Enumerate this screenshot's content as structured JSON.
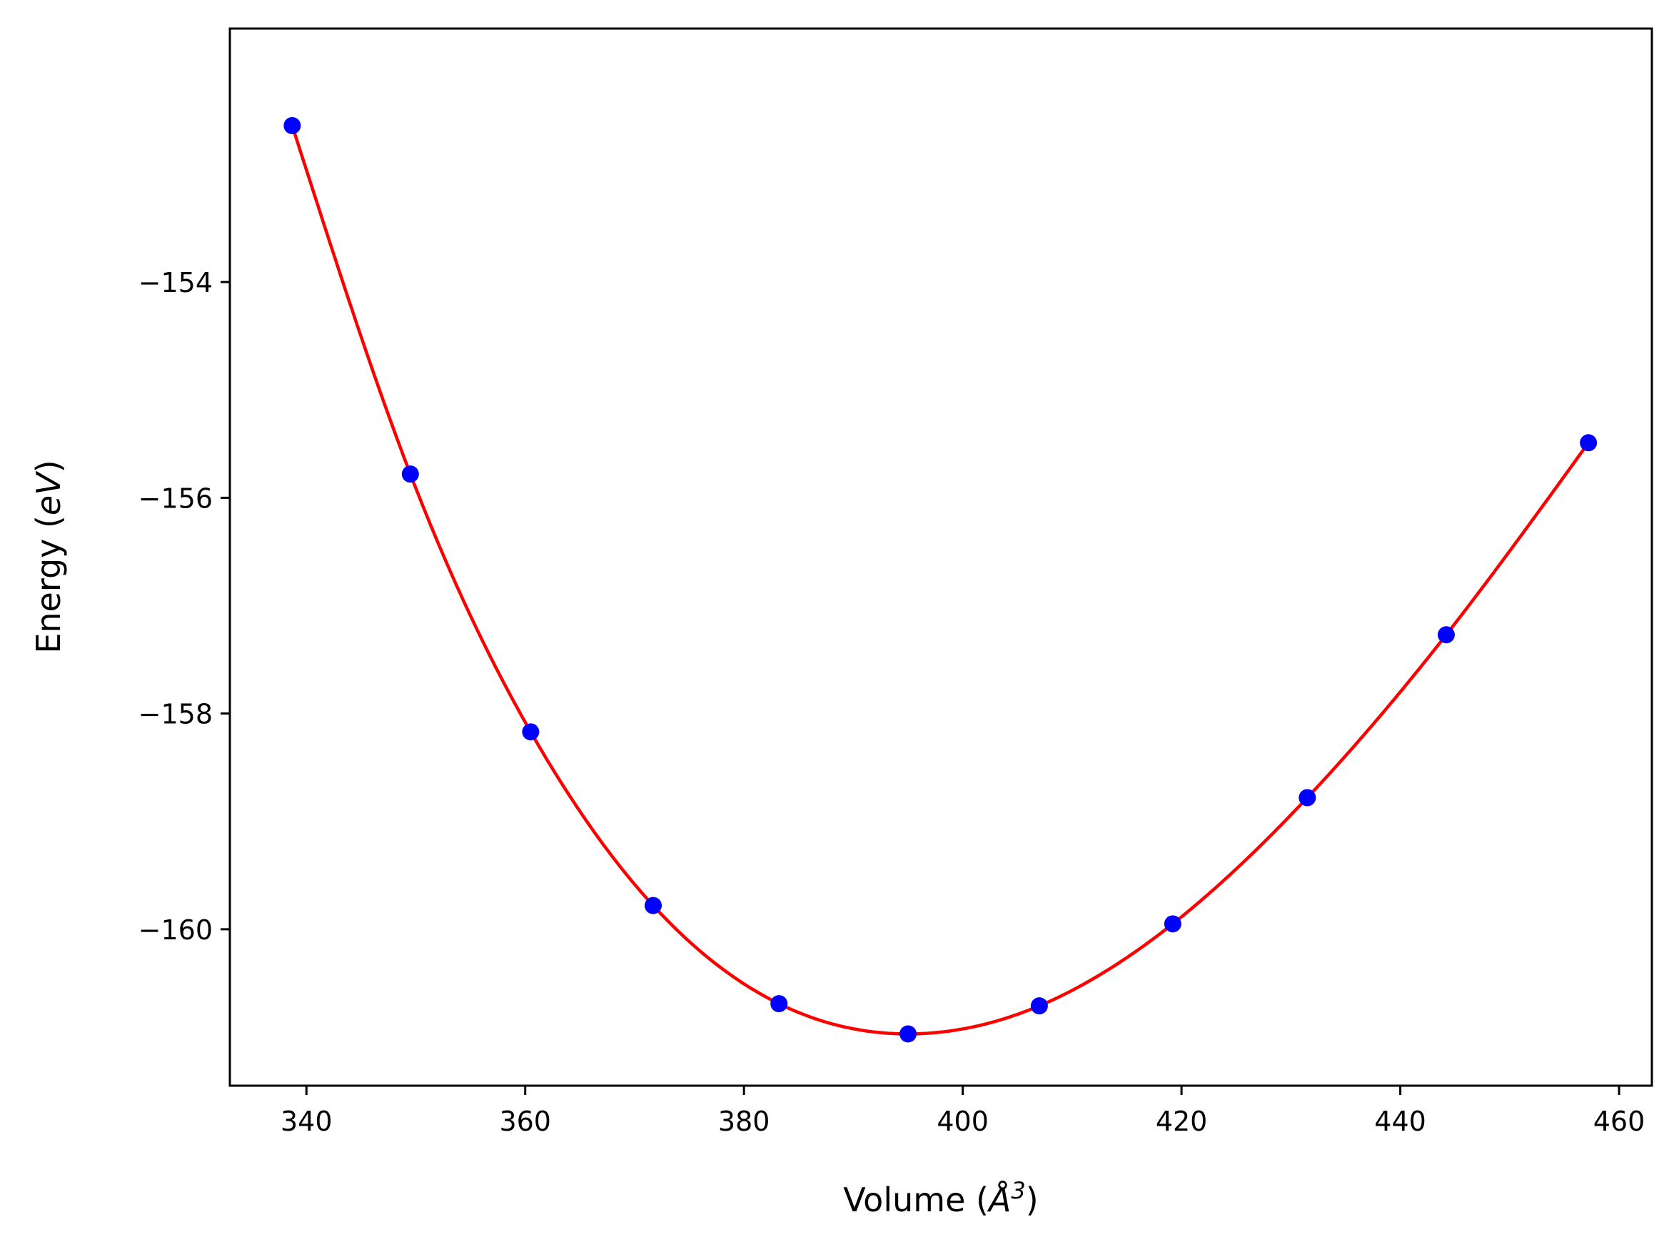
{
  "chart_data": {
    "type": "scatter",
    "title": "",
    "xlabel_main": "Volume (",
    "xlabel_unit": "Å",
    "xlabel_exp": "3",
    "xlabel_close": ")",
    "ylabel_main": "Energy (",
    "ylabel_unit": "eV",
    "ylabel_close": ")",
    "xlim": [
      333,
      463
    ],
    "ylim": [
      -161.45,
      -151.65
    ],
    "xticks": [
      340,
      360,
      380,
      400,
      420,
      440,
      460
    ],
    "xtick_labels": [
      "340",
      "360",
      "380",
      "400",
      "420",
      "440",
      "460"
    ],
    "yticks": [
      -154,
      -156,
      -158,
      -160
    ],
    "ytick_labels": [
      "−154",
      "−156",
      "−158",
      "−160"
    ],
    "grid": false,
    "legend": "none",
    "series": [
      {
        "kind": "points",
        "color": "#0000ff",
        "x": [
          338.7,
          349.5,
          360.5,
          371.7,
          383.2,
          395.0,
          407.0,
          419.2,
          431.5,
          444.2,
          457.2
        ],
        "y": [
          -152.55,
          -155.78,
          -158.17,
          -159.78,
          -160.69,
          -160.97,
          -160.71,
          -159.95,
          -158.78,
          -157.27,
          -155.49
        ]
      },
      {
        "kind": "fit-curve",
        "color": "#ff0000",
        "x": [
          338.7,
          349.5,
          360.5,
          371.7,
          383.2,
          395.0,
          407.0,
          419.2,
          431.5,
          444.2,
          457.2
        ],
        "y": [
          -152.55,
          -155.78,
          -158.17,
          -159.78,
          -160.69,
          -160.97,
          -160.71,
          -159.95,
          -158.78,
          -157.27,
          -155.49
        ]
      }
    ]
  }
}
